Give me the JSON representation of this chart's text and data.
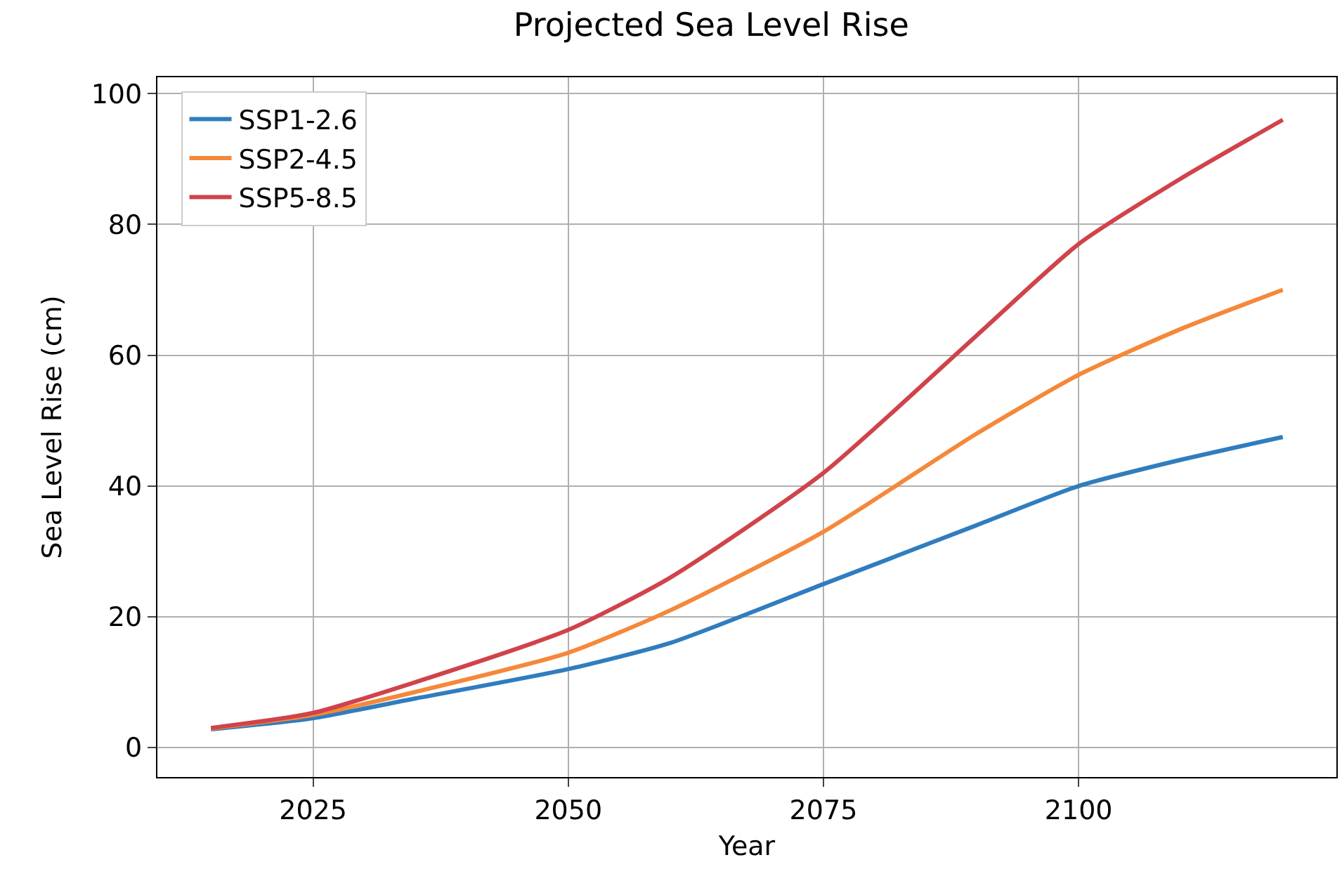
{
  "chart_data": {
    "type": "line",
    "title": "Projected Sea Level Rise",
    "xlabel": "Year",
    "ylabel": "Sea Level Rise (cm)",
    "x": [
      2015,
      2025,
      2035,
      2050,
      2060,
      2075,
      2090,
      2100,
      2110,
      2120
    ],
    "series": [
      {
        "name": "SSP1-2.6",
        "color": "#2f7dbf",
        "values": [
          2.8,
          4.5,
          7.5,
          12,
          16,
          25,
          34,
          40,
          44,
          47.5
        ]
      },
      {
        "name": "SSP2-4.5",
        "color": "#f5883a",
        "values": [
          2.9,
          5,
          8.5,
          14.5,
          21,
          33,
          48,
          57,
          64,
          70
        ]
      },
      {
        "name": "SSP5-8.5",
        "color": "#d0434a",
        "values": [
          3,
          5.3,
          10,
          18,
          26,
          42,
          63,
          77,
          87,
          96
        ]
      }
    ],
    "xlim": [
      2009.75,
      2125.25
    ],
    "xticks": [
      2025,
      2050,
      2075,
      2100
    ],
    "ylim": [
      -4.5,
      102.5
    ],
    "yticks": [
      0,
      20,
      40,
      60,
      80,
      100
    ],
    "grid": true,
    "legend": "top left",
    "line_style": "solid",
    "marker": "none"
  }
}
